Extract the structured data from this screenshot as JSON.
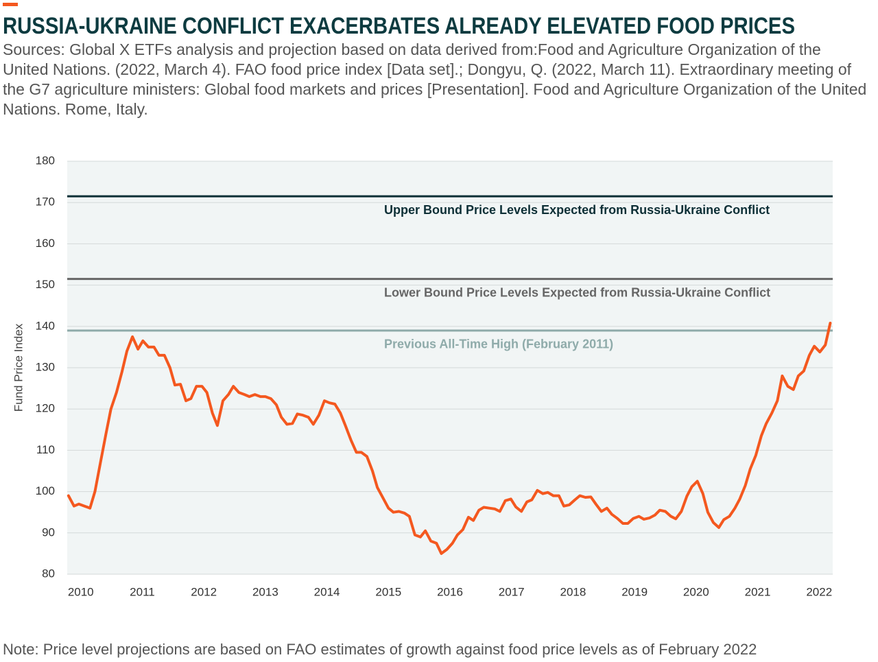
{
  "chart_data": {
    "type": "line",
    "title": "RUSSIA-UKRAINE CONFLICT EXACERBATES ALREADY ELEVATED FOOD PRICES",
    "subtitle": "Sources: Global X ETFs analysis and projection based on data derived from:Food and Agriculture Organization of the United Nations. (2022, March 4). FAO food price index [Data set].; Dongyu, Q. (2022, March 11). Extraordinary meeting of the G7 agriculture ministers: Global food markets and prices [Presentation]. Food and Agriculture Organization of the United Nations. Rome, Italy.",
    "note": "Note: Price level projections are based on FAO estimates of growth against food price levels as of February 2022",
    "y_label": "Fund Price Index",
    "x": [
      2009.8,
      2009.89,
      2009.97,
      2010.06,
      2010.15,
      2010.23,
      2010.32,
      2010.41,
      2010.49,
      2010.58,
      2010.67,
      2010.75,
      2010.84,
      2010.93,
      2011.01,
      2011.1,
      2011.19,
      2011.27,
      2011.36,
      2011.45,
      2011.53,
      2011.62,
      2011.71,
      2011.79,
      2011.88,
      2011.97,
      2012.05,
      2012.14,
      2012.22,
      2012.31,
      2012.4,
      2012.48,
      2012.57,
      2012.66,
      2012.74,
      2012.83,
      2012.92,
      2013.0,
      2013.09,
      2013.18,
      2013.26,
      2013.35,
      2013.44,
      2013.52,
      2013.61,
      2013.7,
      2013.78,
      2013.87,
      2013.96,
      2014.04,
      2014.13,
      2014.22,
      2014.3,
      2014.39,
      2014.48,
      2014.56,
      2014.65,
      2014.74,
      2014.82,
      2014.91,
      2015.0,
      2015.08,
      2015.17,
      2015.26,
      2015.34,
      2015.43,
      2015.52,
      2015.6,
      2015.69,
      2015.78,
      2015.86,
      2015.95,
      2016.04,
      2016.12,
      2016.21,
      2016.3,
      2016.38,
      2016.47,
      2016.55,
      2016.64,
      2016.73,
      2016.81,
      2016.9,
      2016.99,
      2017.07,
      2017.16,
      2017.25,
      2017.33,
      2017.42,
      2017.51,
      2017.59,
      2017.68,
      2017.77,
      2017.85,
      2017.94,
      2018.03,
      2018.11,
      2018.2,
      2018.29,
      2018.37,
      2018.46,
      2018.55,
      2018.63,
      2018.72,
      2018.81,
      2018.89,
      2018.98,
      2019.07,
      2019.15,
      2019.24,
      2019.33,
      2019.41,
      2019.5,
      2019.59,
      2019.67,
      2019.76,
      2019.85,
      2019.93,
      2020.02,
      2020.11,
      2020.19,
      2020.28,
      2020.37,
      2020.45,
      2020.54,
      2020.63,
      2020.71,
      2020.8,
      2020.88,
      2020.97,
      2021.06,
      2021.14,
      2021.23,
      2021.32,
      2021.4,
      2021.49,
      2021.58,
      2021.66,
      2021.75,
      2021.84,
      2021.92,
      2022.01,
      2022.1,
      2022.18
    ],
    "series": [
      {
        "name": "FAO Food Price Index",
        "color": "#f4581f",
        "values": [
          99,
          96.5,
          97,
          96.5,
          96,
          100,
          107,
          114,
          120,
          124,
          129,
          134,
          137.5,
          134.5,
          136.5,
          135,
          135,
          133,
          133,
          130,
          125.8,
          126,
          122,
          122.5,
          125.5,
          125.5,
          124,
          119,
          116,
          122,
          123.5,
          125.5,
          124,
          123.5,
          123,
          123.5,
          123,
          123,
          122.5,
          121,
          118,
          116.3,
          116.5,
          118.8,
          118.5,
          118,
          116.3,
          118.5,
          122,
          121.5,
          121.2,
          119,
          116,
          112.5,
          109.5,
          109.5,
          108.5,
          105,
          101,
          98.5,
          96,
          95,
          95.2,
          94.8,
          94,
          89.5,
          89,
          90.5,
          88,
          87.5,
          85,
          86,
          87.5,
          89.5,
          90.8,
          93.8,
          93,
          95.5,
          96.2,
          96,
          95.8,
          95.2,
          97.8,
          98.2,
          96.3,
          95.2,
          97.5,
          98,
          100.3,
          99.5,
          99.8,
          99,
          99,
          96.5,
          96.8,
          98,
          99,
          98.6,
          98.7,
          97,
          95.2,
          96,
          94.5,
          93.5,
          92.3,
          92.3,
          93.5,
          94,
          93.3,
          93.6,
          94.3,
          95.5,
          95.2,
          94,
          93.4,
          95.2,
          98.9,
          101.2,
          102.5,
          99.5,
          95,
          92.5,
          91.3,
          93.2,
          94,
          96,
          98.2,
          101.5,
          105.5,
          108.8,
          113.5,
          116.5,
          119,
          122,
          128,
          125.5,
          124.7,
          128,
          129.2,
          133,
          135.2,
          133.8,
          135.5,
          140.8
        ]
      }
    ],
    "reference_lines": [
      {
        "value": 171.5,
        "label": "Upper Bound Price Levels Expected from Russia-Ukraine Conflict",
        "color": "#0d2f36"
      },
      {
        "value": 151.5,
        "label": "Lower Bound Price Levels Expected from Russia-Ukraine Conflict",
        "color": "#666666"
      },
      {
        "value": 139,
        "label": "Previous All-Time High (February 2011)",
        "color": "#8fabaa"
      }
    ],
    "xlim": [
      2009.78,
      2022.22
    ],
    "xticks": [
      2010,
      2011,
      2012,
      2013,
      2014,
      2015,
      2016,
      2017,
      2018,
      2019,
      2020,
      2021,
      2022
    ],
    "ylim": [
      80,
      180
    ],
    "yticks": [
      80,
      90,
      100,
      110,
      120,
      130,
      140,
      150,
      160,
      170,
      180
    ],
    "grid": true
  }
}
